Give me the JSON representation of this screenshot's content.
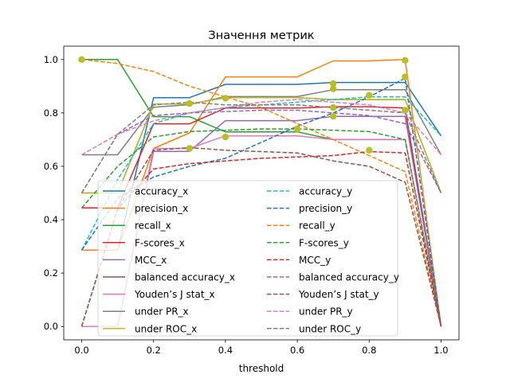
{
  "chart_data": {
    "type": "line",
    "title": "Значення метрик",
    "xlabel": "threshold",
    "ylabel": "",
    "xlim": [
      -0.05,
      1.05
    ],
    "ylim": [
      -0.05,
      1.05
    ],
    "xticks": [
      0.0,
      0.2,
      0.4,
      0.6,
      0.8,
      1.0
    ],
    "xtick_labels": [
      "0.0",
      "0.2",
      "0.4",
      "0.6",
      "0.8",
      "1.0"
    ],
    "yticks": [
      0.0,
      0.2,
      0.4,
      0.6,
      0.8,
      1.0
    ],
    "ytick_labels": [
      "0.0",
      "0.2",
      "0.4",
      "0.6",
      "0.8",
      "1.0"
    ],
    "grid": false,
    "legend_position": "lower-left, two columns",
    "x": [
      0.0,
      0.1,
      0.2,
      0.3,
      0.4,
      0.5,
      0.6,
      0.7,
      0.8,
      0.9,
      1.0
    ],
    "series": [
      {
        "name": "accuracy_x",
        "style": "solid",
        "color": "#1f77b4",
        "values": [
          0.286,
          0.286,
          0.857,
          0.857,
          0.907,
          0.907,
          0.907,
          0.914,
          0.914,
          0.914,
          0.714
        ]
      },
      {
        "name": "precision_x",
        "style": "solid",
        "color": "#ff7f0e",
        "values": [
          0.286,
          0.286,
          0.667,
          0.725,
          0.935,
          0.935,
          0.935,
          0.995,
          0.995,
          1.0,
          0.0
        ]
      },
      {
        "name": "recall_x",
        "style": "solid",
        "color": "#2ca02c",
        "values": [
          1.0,
          1.0,
          0.786,
          0.786,
          0.729,
          0.729,
          0.729,
          0.7,
          0.7,
          0.7,
          0.0
        ]
      },
      {
        "name": "F-scores_x",
        "style": "solid",
        "color": "#d62728",
        "values": [
          0.444,
          0.444,
          0.759,
          0.759,
          0.818,
          0.818,
          0.818,
          0.823,
          0.823,
          0.818,
          0.0
        ]
      },
      {
        "name": "MCC_x",
        "style": "solid",
        "color": "#9467bd",
        "values": [
          0.0,
          0.0,
          0.656,
          0.656,
          0.771,
          0.771,
          0.771,
          0.787,
          0.787,
          0.787,
          0.0
        ]
      },
      {
        "name": "balanced accuracy_x",
        "style": "solid",
        "color": "#8c564b",
        "values": [
          0.5,
          0.5,
          0.833,
          0.833,
          0.857,
          0.857,
          0.857,
          0.85,
          0.85,
          0.85,
          0.5
        ]
      },
      {
        "name": "Youden’s J stat_x",
        "style": "solid",
        "color": "#e377c2",
        "values": [
          0.0,
          0.0,
          0.667,
          0.667,
          0.714,
          0.714,
          0.714,
          0.7,
          0.7,
          0.7,
          0.0
        ]
      },
      {
        "name": "under PR_x",
        "style": "solid",
        "color": "#7f7f7f",
        "values": [
          0.643,
          0.643,
          0.821,
          0.831,
          0.861,
          0.861,
          0.861,
          0.887,
          0.887,
          0.887,
          0.643
        ]
      },
      {
        "name": "under ROC_x",
        "style": "solid",
        "color": "#bcbd22",
        "values": [
          0.5,
          0.5,
          0.833,
          0.833,
          0.857,
          0.857,
          0.857,
          0.85,
          0.85,
          0.85,
          0.5
        ]
      },
      {
        "name": "accuracy_y",
        "style": "dashed",
        "color": "#17becf",
        "values": [
          0.286,
          0.55,
          0.76,
          0.8,
          0.82,
          0.83,
          0.84,
          0.85,
          0.86,
          0.86,
          0.714
        ]
      },
      {
        "name": "precision_y",
        "style": "dashed",
        "color": "#1f77b4",
        "values": [
          0.286,
          0.48,
          0.56,
          0.6,
          0.63,
          0.69,
          0.75,
          0.8,
          0.86,
          0.93,
          0.0
        ]
      },
      {
        "name": "recall_y",
        "style": "dashed",
        "color": "#ff7f0e",
        "values": [
          1.0,
          0.985,
          0.955,
          0.9,
          0.86,
          0.82,
          0.76,
          0.7,
          0.64,
          0.58,
          0.0
        ]
      },
      {
        "name": "F-scores_y",
        "style": "dashed",
        "color": "#2ca02c",
        "values": [
          0.444,
          0.6,
          0.71,
          0.73,
          0.735,
          0.74,
          0.74,
          0.735,
          0.73,
          0.7,
          0.0
        ]
      },
      {
        "name": "MCC_y",
        "style": "dashed",
        "color": "#d62728",
        "values": [
          0.0,
          0.44,
          0.59,
          0.61,
          0.62,
          0.63,
          0.635,
          0.64,
          0.655,
          0.65,
          0.0
        ]
      },
      {
        "name": "balanced accuracy_y",
        "style": "dashed",
        "color": "#9467bd",
        "values": [
          0.5,
          0.72,
          0.79,
          0.8,
          0.805,
          0.81,
          0.81,
          0.8,
          0.79,
          0.76,
          0.5
        ]
      },
      {
        "name": "Youden’s J stat_y",
        "style": "dashed",
        "color": "#8c564b",
        "values": [
          0.0,
          0.44,
          0.66,
          0.67,
          0.66,
          0.655,
          0.65,
          0.62,
          0.6,
          0.54,
          0.0
        ]
      },
      {
        "name": "under PR_y",
        "style": "dashed",
        "color": "#e377c2",
        "values": [
          0.643,
          0.72,
          0.77,
          0.8,
          0.82,
          0.84,
          0.85,
          0.84,
          0.83,
          0.8,
          0.643
        ]
      },
      {
        "name": "under ROC_y",
        "style": "dashed",
        "color": "#7f7f7f",
        "values": [
          0.5,
          0.72,
          0.83,
          0.84,
          0.83,
          0.83,
          0.83,
          0.82,
          0.81,
          0.8,
          0.5
        ]
      }
    ],
    "markers": {
      "color": "#bcbd22",
      "points": [
        [
          0.0,
          1.0
        ],
        [
          0.3,
          0.835
        ],
        [
          0.3,
          0.667
        ],
        [
          0.4,
          0.855
        ],
        [
          0.4,
          0.71
        ],
        [
          0.6,
          0.74
        ],
        [
          0.7,
          0.91
        ],
        [
          0.7,
          0.89
        ],
        [
          0.7,
          0.82
        ],
        [
          0.7,
          0.787
        ],
        [
          0.8,
          0.866
        ],
        [
          0.8,
          0.66
        ],
        [
          0.9,
          0.997
        ],
        [
          0.9,
          0.935
        ],
        [
          0.9,
          0.81
        ]
      ]
    }
  }
}
